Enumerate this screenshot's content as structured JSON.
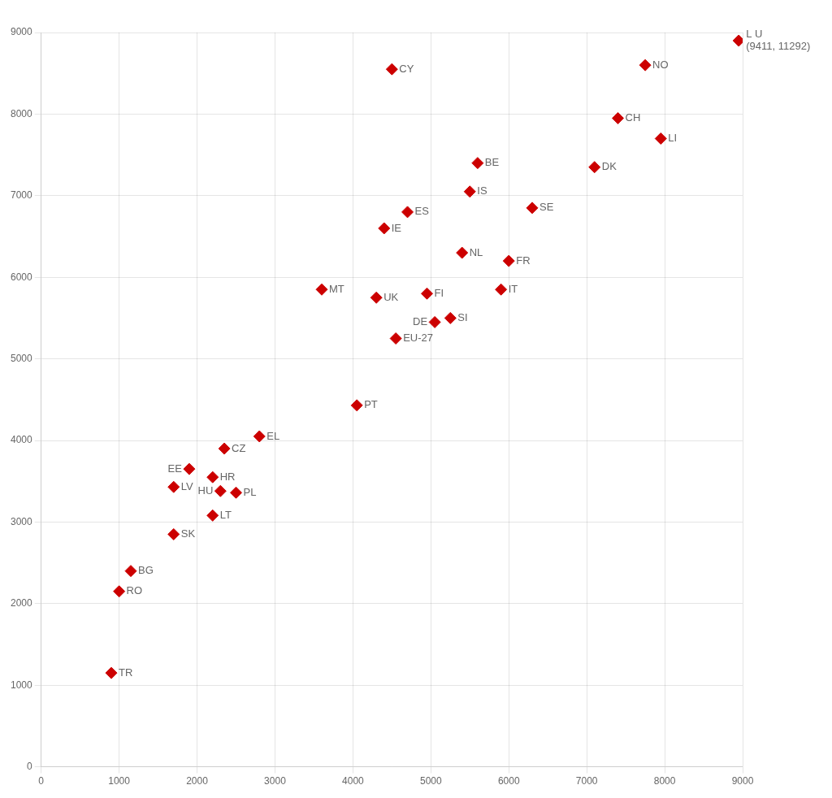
{
  "chart_data": {
    "type": "scatter",
    "color": "#cc0000",
    "marker": "diamond",
    "grid": true,
    "xlim": [
      0,
      9000
    ],
    "ylim": [
      0,
      9000
    ],
    "xticks": [
      0,
      1000,
      2000,
      3000,
      4000,
      5000,
      6000,
      7000,
      8000,
      9000
    ],
    "yticks": [
      0,
      1000,
      2000,
      3000,
      4000,
      5000,
      6000,
      7000,
      8000,
      9000
    ],
    "points": [
      {
        "label": "TR",
        "x": 900,
        "y": 1150
      },
      {
        "label": "RO",
        "x": 1000,
        "y": 2150
      },
      {
        "label": "BG",
        "x": 1150,
        "y": 2400
      },
      {
        "label": "SK",
        "x": 1700,
        "y": 2850
      },
      {
        "label": "LV",
        "x": 1700,
        "y": 3430
      },
      {
        "label": "EE",
        "x": 1900,
        "y": 3650
      },
      {
        "label": "LT",
        "x": 2200,
        "y": 3080
      },
      {
        "label": "HR",
        "x": 2200,
        "y": 3550
      },
      {
        "label": "HU",
        "x": 2300,
        "y": 3380
      },
      {
        "label": "PL",
        "x": 2500,
        "y": 3360
      },
      {
        "label": "CZ",
        "x": 2350,
        "y": 3900
      },
      {
        "label": "EL",
        "x": 2800,
        "y": 4050
      },
      {
        "label": "PT",
        "x": 4050,
        "y": 4430
      },
      {
        "label": "MT",
        "x": 3600,
        "y": 5850
      },
      {
        "label": "UK",
        "x": 4300,
        "y": 5750
      },
      {
        "label": "EU-27",
        "x": 4550,
        "y": 5250
      },
      {
        "label": "IE",
        "x": 4400,
        "y": 6600
      },
      {
        "label": "ES",
        "x": 4700,
        "y": 6800
      },
      {
        "label": "CY",
        "x": 4500,
        "y": 8550
      },
      {
        "label": "FI",
        "x": 4950,
        "y": 5800
      },
      {
        "label": "DE",
        "x": 5050,
        "y": 5450
      },
      {
        "label": "SI",
        "x": 5250,
        "y": 5500
      },
      {
        "label": "NL",
        "x": 5400,
        "y": 6300
      },
      {
        "label": "IS",
        "x": 5500,
        "y": 7050
      },
      {
        "label": "BE",
        "x": 5600,
        "y": 7400
      },
      {
        "label": "IT",
        "x": 5900,
        "y": 5850
      },
      {
        "label": "FR",
        "x": 6000,
        "y": 6200
      },
      {
        "label": "SE",
        "x": 6300,
        "y": 6850
      },
      {
        "label": "DK",
        "x": 7100,
        "y": 7350
      },
      {
        "label": "CH",
        "x": 7400,
        "y": 7950
      },
      {
        "label": "NO",
        "x": 7750,
        "y": 8600
      },
      {
        "label": "LI",
        "x": 7950,
        "y": 7700
      },
      {
        "label": "L U",
        "x": 8950,
        "y": 8900,
        "annotation": "(9411, 11292)"
      }
    ]
  }
}
